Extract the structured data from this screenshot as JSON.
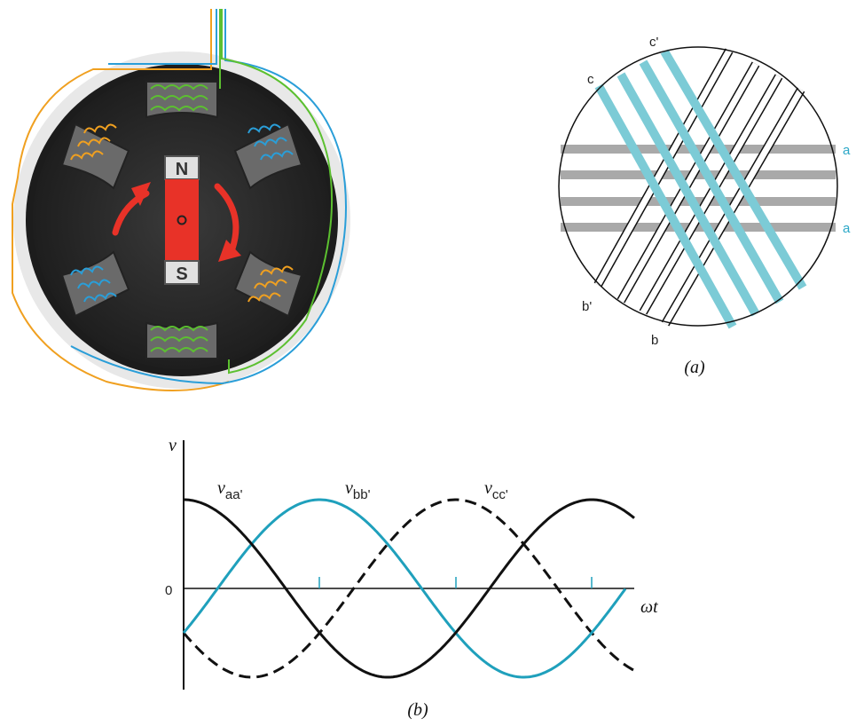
{
  "motor": {
    "north_label": "N",
    "south_label": "S",
    "colors": {
      "phase1": "#f0a020",
      "phase2": "#2a9ed8",
      "phase3": "#5cc030",
      "rotor": "#e83228",
      "arrow": "#e83228"
    }
  },
  "winding_diagram": {
    "caption": "(a)",
    "labels": {
      "a": "a",
      "a_prime": "a",
      "b": "b",
      "b_prime": "b'",
      "c": "c",
      "c_prime": "c'"
    },
    "colors": {
      "phase_a": "#a9a9a9",
      "phase_b": "#ffffff",
      "phase_c": "#7ccbd6"
    }
  },
  "waveform": {
    "caption": "(b)",
    "y_axis_label": "v",
    "x_axis_label": "ωt",
    "zero_label": "0",
    "curves": [
      {
        "symbol": "v",
        "subscript": "aa'",
        "style": "solid",
        "color": "#111111"
      },
      {
        "symbol": "v",
        "subscript": "bb'",
        "style": "solid",
        "color": "#1fa0bc"
      },
      {
        "symbol": "v",
        "subscript": "cc'",
        "style": "dashed",
        "color": "#111111"
      }
    ]
  }
}
